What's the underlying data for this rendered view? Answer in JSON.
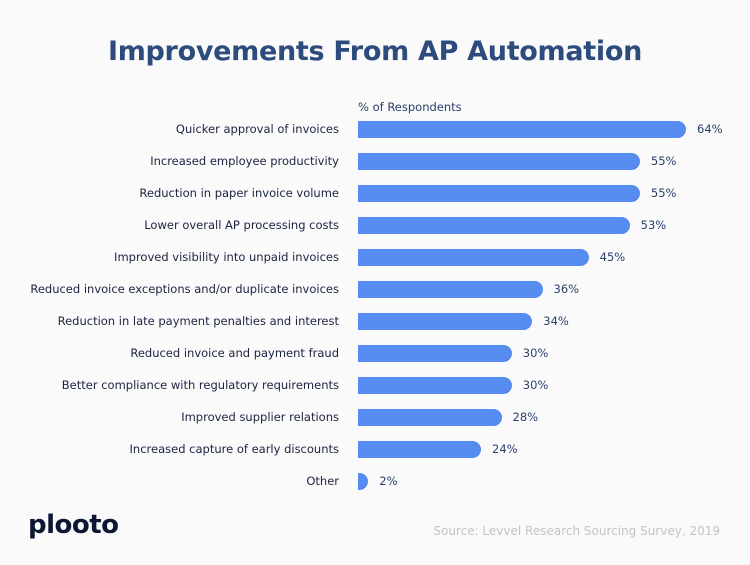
{
  "chart_data": {
    "type": "bar",
    "orientation": "horizontal",
    "title": "Improvements From AP Automation",
    "xlabel": "% of Respondents",
    "categories": [
      "Quicker approval of invoices",
      "Increased employee productivity",
      "Reduction in paper invoice volume",
      "Lower overall AP processing costs",
      "Improved visibility into unpaid invoices",
      "Reduced invoice exceptions and/or duplicate invoices",
      "Reduction in late payment penalties and interest",
      "Reduced invoice and payment fraud",
      "Better compliance with regulatory requirements",
      "Improved supplier relations",
      "Increased capture of early discounts",
      "Other"
    ],
    "values": [
      64,
      55,
      55,
      53,
      45,
      36,
      34,
      30,
      30,
      28,
      24,
      2
    ],
    "value_labels": [
      "64%",
      "55%",
      "55%",
      "53%",
      "45%",
      "36%",
      "34%",
      "30%",
      "30%",
      "28%",
      "24%",
      "2%"
    ],
    "bar_color": "#568bef",
    "grid": false
  },
  "footer": {
    "logo": "plooto",
    "source": "Source: Levvel Research Sourcing Survey, 2019"
  }
}
